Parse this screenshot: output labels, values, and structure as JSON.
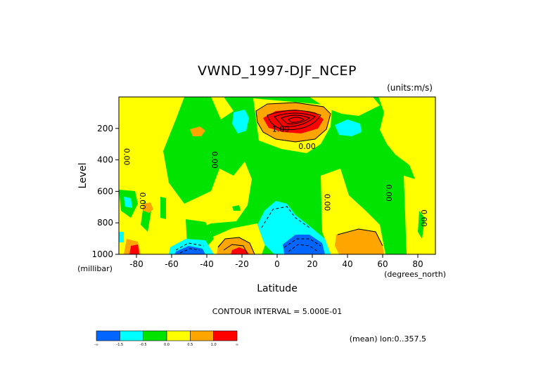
{
  "chart_data": {
    "type": "contour",
    "title": "VWND_1997-DJF_NCEP",
    "units_note": "(units:m/s)",
    "xlabel": "Latitude",
    "xunits": "(degrees_north)",
    "ylabel": "Level",
    "yunits": "(millibar)",
    "xlim": [
      -90,
      90
    ],
    "ylim": [
      1000,
      0
    ],
    "x_ticks": [
      -80,
      -60,
      -40,
      -20,
      0,
      20,
      40,
      60,
      80
    ],
    "x_tick_labels": [
      "-80",
      "-60",
      "-40",
      "-20",
      "0",
      "20",
      "40",
      "60",
      "80"
    ],
    "y_ticks": [
      200,
      400,
      600,
      800,
      1000
    ],
    "y_tick_labels": [
      "200",
      "400",
      "600",
      "800",
      "1000"
    ],
    "contour_interval_text": "CONTOUR INTERVAL = 5.000E-01",
    "mean_note": "(mean) lon:0..357.5",
    "colorbar": {
      "colors": [
        "#0066ff",
        "#00ffff",
        "#00e400",
        "#ffff00",
        "#ffa500",
        "#ff0000"
      ],
      "labels": [
        "-∞",
        "-1.5",
        "-0.5",
        "0.0",
        "0.5",
        "1.0",
        "∞"
      ]
    },
    "contour_labels": [
      {
        "text": "0.00",
        "lat": -87,
        "lev": 380,
        "vertical": true
      },
      {
        "text": "0.00",
        "lat": -78,
        "lev": 660,
        "vertical": true
      },
      {
        "text": "0.00",
        "lat": -37,
        "lev": 400,
        "vertical": true
      },
      {
        "text": "1.00",
        "lat": 2,
        "lev": 220,
        "vertical": false
      },
      {
        "text": "0.00",
        "lat": 17,
        "lev": 330,
        "vertical": false
      },
      {
        "text": "0.00",
        "lat": 27,
        "lev": 670,
        "vertical": true
      },
      {
        "text": "0.00",
        "lat": 62,
        "lev": 610,
        "vertical": true
      },
      {
        "text": "0.00",
        "lat": 82,
        "lev": 770,
        "vertical": true
      }
    ],
    "features": [
      {
        "region": "strong positive maximum",
        "lat": 12,
        "lev": 170,
        "value_range": ">1.0"
      },
      {
        "region": "negative minimum",
        "lat": 12,
        "lev": 960,
        "value_range": "<-1.5"
      },
      {
        "region": "negative minimum",
        "lat": -50,
        "lev": 980,
        "value_range": "<-1.5"
      },
      {
        "region": "positive maximum",
        "lat": -25,
        "lev": 980,
        "value_range": ">1.0"
      },
      {
        "region": "positive maximum",
        "lat": -83,
        "lev": 970,
        "value_range": ">1.0"
      },
      {
        "region": "positive",
        "lat": 48,
        "lev": 930,
        "value_range": "0.5-1.0"
      }
    ]
  }
}
